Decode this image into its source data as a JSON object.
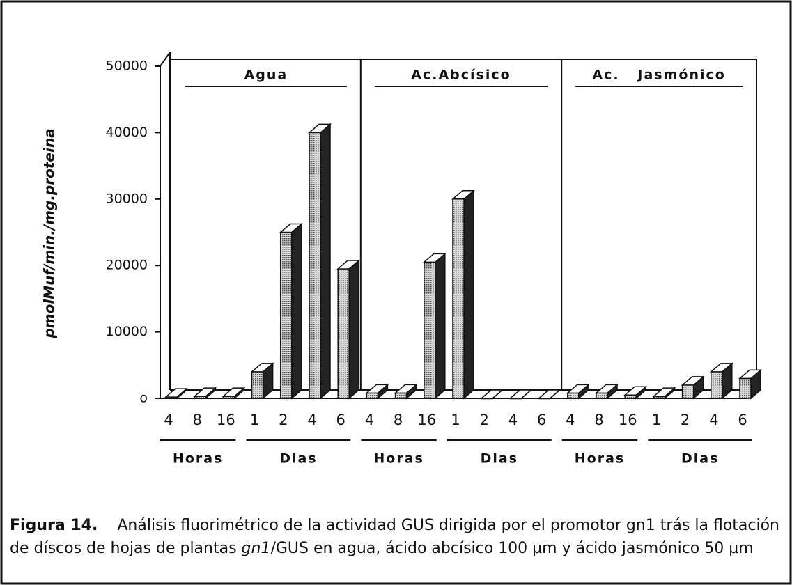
{
  "chart_data": {
    "type": "bar",
    "y_label": "pmolMuf/min./mg.proteina",
    "categories": [
      "4",
      "8",
      "16",
      "1",
      "2",
      "4",
      "6",
      "4",
      "8",
      "16",
      "1",
      "2",
      "4",
      "6",
      "4",
      "8",
      "16",
      "1",
      "2",
      "4",
      "6"
    ],
    "groups": [
      {
        "name": "Agua",
        "subgroups": [
          "Horas",
          "Dias"
        ]
      },
      {
        "name": "Ac.Abcísico",
        "subgroups": [
          "Horas",
          "Dias"
        ]
      },
      {
        "name": "Ac.   Jasmónico",
        "subgroups": [
          "Horas",
          "Dias"
        ]
      }
    ],
    "series": [
      {
        "name": "GUS",
        "color": "#9a9a9a",
        "values": [
          200,
          300,
          300,
          4000,
          25000,
          40000,
          19500,
          800,
          800,
          20500,
          30000,
          0,
          0,
          0,
          800,
          800,
          500,
          300,
          2000,
          4000,
          3000
        ]
      }
    ],
    "ylim": [
      0,
      50000
    ],
    "yticks": [
      {
        "value": 0,
        "label": "o"
      },
      10000,
      20000,
      30000,
      40000,
      50000
    ]
  },
  "caption": {
    "label": "Figura 14.",
    "text1": "Análisis fluorimétrico de la actividad GUS dirigida por el promotor gn1 trás la flotación de díscos de hojas de plantas ",
    "italic": "gn1",
    "text2": "/GUS en agua, ácido abcísico 100 µm y ácido jasmónico 50 µm"
  }
}
